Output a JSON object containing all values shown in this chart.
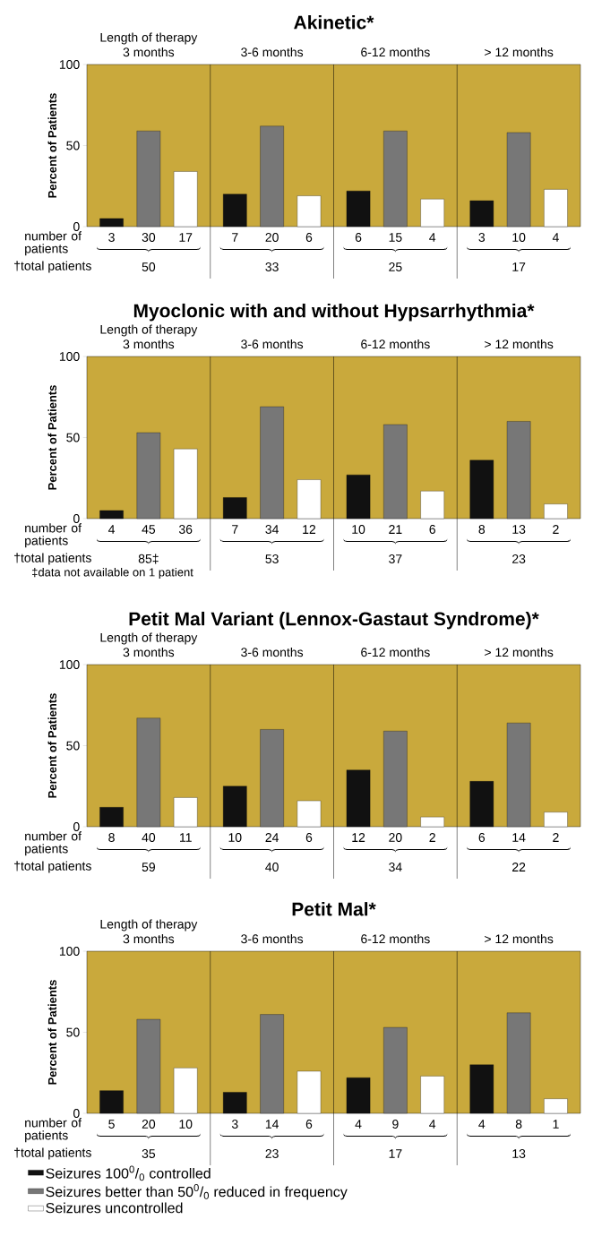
{
  "chart_data": [
    {
      "type": "bar",
      "title": "Akinetic*",
      "xlabel": "Length of therapy",
      "ylabel": "Percent of Patients",
      "categories": [
        "3 months",
        "3-6 months",
        "6-12 months",
        "> 12 months"
      ],
      "series": [
        {
          "color": "#111111",
          "values": [
            5,
            20,
            22,
            16
          ]
        },
        {
          "color": "#777777",
          "values": [
            59,
            62,
            59,
            58
          ]
        },
        {
          "color": "#ffffff",
          "values": [
            34,
            19,
            17,
            23
          ]
        }
      ],
      "ylim": [
        0,
        100
      ],
      "yticks": [
        0,
        50,
        100
      ],
      "annotations": [
        "number of patients",
        "†total patients",
        "3",
        "30",
        "17",
        "7",
        "20",
        "6",
        "6",
        "15",
        "4",
        "3",
        "10",
        "4",
        "50",
        "33",
        "25",
        "17"
      ]
    },
    {
      "type": "bar",
      "title": "Myoclonic with and without Hypsarrhythmia*",
      "xlabel": "Length of therapy",
      "ylabel": "Percent of Patients",
      "categories": [
        "3 months",
        "3-6 months",
        "6-12 months",
        "> 12 months"
      ],
      "series": [
        {
          "color": "#111111",
          "values": [
            5,
            13,
            27,
            36
          ]
        },
        {
          "color": "#777777",
          "values": [
            53,
            69,
            58,
            60
          ]
        },
        {
          "color": "#ffffff",
          "values": [
            43,
            24,
            17,
            9
          ]
        }
      ],
      "ylim": [
        0,
        100
      ],
      "yticks": [
        0,
        50,
        100
      ],
      "annotations": [
        "number of patients",
        "†total patients",
        "4",
        "45",
        "36",
        "7",
        "34",
        "12",
        "10",
        "21",
        "6",
        "8",
        "13",
        "2",
        "85‡",
        "53",
        "37",
        "23",
        "‡data not available on 1 patient"
      ]
    },
    {
      "type": "bar",
      "title": "Petit Mal Variant (Lennox-Gastaut Syndrome)*",
      "xlabel": "Length of therapy",
      "ylabel": "Percent of Patients",
      "categories": [
        "3 months",
        "3-6 months",
        "6-12 months",
        "> 12 months"
      ],
      "series": [
        {
          "color": "#111111",
          "values": [
            12,
            25,
            35,
            28
          ]
        },
        {
          "color": "#777777",
          "values": [
            67,
            60,
            59,
            64
          ]
        },
        {
          "color": "#ffffff",
          "values": [
            18,
            16,
            6,
            9
          ]
        }
      ],
      "ylim": [
        0,
        100
      ],
      "yticks": [
        0,
        50,
        100
      ],
      "annotations": [
        "number of patients",
        "†total patients",
        "8",
        "40",
        "11",
        "10",
        "24",
        "6",
        "12",
        "20",
        "2",
        "6",
        "14",
        "2",
        "59",
        "40",
        "34",
        "22"
      ]
    },
    {
      "type": "bar",
      "title": "Petit Mal*",
      "xlabel": "Length of therapy",
      "ylabel": "Percent of Patients",
      "categories": [
        "3 months",
        "3-6 months",
        "6-12 months",
        "> 12 months"
      ],
      "series": [
        {
          "name": "Seizures 100$^{0}$/$_{0}$ controlled",
          "color": "#111111",
          "values": [
            14,
            13,
            22,
            30
          ]
        },
        {
          "name": "Seizures better than 50$^{0}$/$_{0}$ reduced in frequency",
          "color": "#777777",
          "values": [
            58,
            61,
            53,
            62
          ]
        },
        {
          "name": "Seizures uncontrolled",
          "color": "#ffffff",
          "values": [
            28,
            26,
            23,
            9
          ]
        }
      ],
      "ylim": [
        0,
        100
      ],
      "yticks": [
        0,
        50,
        100
      ],
      "legend": "bottom",
      "annotations": [
        "number of patients",
        "†total patients",
        "5",
        "20",
        "10",
        "3",
        "14",
        "6",
        "4",
        "9",
        "4",
        "4",
        "8",
        "1",
        "35",
        "23",
        "17",
        "13"
      ]
    }
  ]
}
